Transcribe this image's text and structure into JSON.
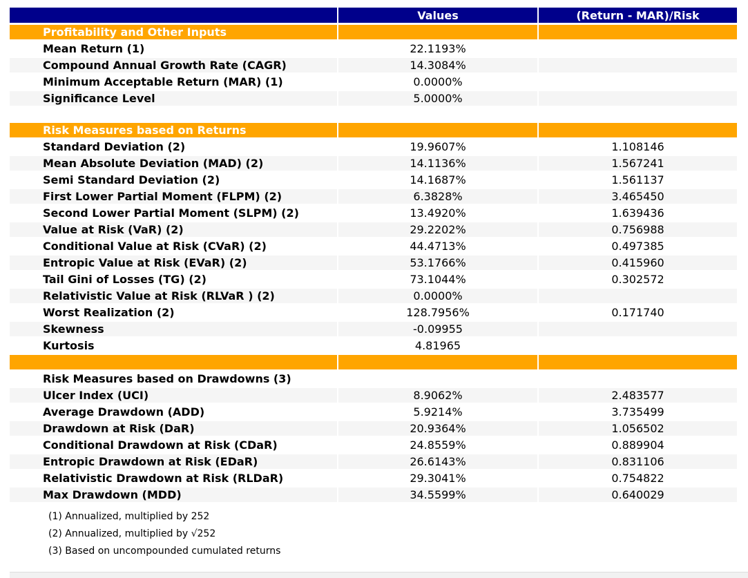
{
  "colors": {
    "header_bg": "#00008B",
    "section_bg": "#FFA500",
    "row_alt_bg": "#F5F5F5",
    "header_text": "#FFFFFF",
    "body_text": "#000000"
  },
  "table": {
    "columns": [
      "",
      "Values",
      "(Return - MAR)/Risk"
    ],
    "sections": [
      {
        "header": "Profitability and Other Inputs",
        "gap_before": false,
        "rows": [
          {
            "label": "Mean Return (1)",
            "value": "22.1193%",
            "ratio": ""
          },
          {
            "label": "Compound Annual Growth Rate (CAGR)",
            "value": "14.3084%",
            "ratio": ""
          },
          {
            "label": "Minimum Acceptable Return (MAR) (1)",
            "value": "0.0000%",
            "ratio": ""
          },
          {
            "label": "Significance Level",
            "value": "5.0000%",
            "ratio": ""
          }
        ]
      },
      {
        "header": "Risk Measures based on Returns",
        "gap_before": true,
        "rows": [
          {
            "label": "Standard Deviation (2)",
            "value": "19.9607%",
            "ratio": "1.108146"
          },
          {
            "label": "Mean Absolute Deviation (MAD) (2)",
            "value": "14.1136%",
            "ratio": "1.567241"
          },
          {
            "label": "Semi Standard Deviation (2)",
            "value": "14.1687%",
            "ratio": "1.561137"
          },
          {
            "label": "First Lower Partial Moment (FLPM) (2)",
            "value": "6.3828%",
            "ratio": "3.465450"
          },
          {
            "label": "Second Lower Partial Moment (SLPM) (2)",
            "value": "13.4920%",
            "ratio": "1.639436"
          },
          {
            "label": "Value at Risk (VaR) (2)",
            "value": "29.2202%",
            "ratio": "0.756988"
          },
          {
            "label": "Conditional Value at Risk (CVaR) (2)",
            "value": "44.4713%",
            "ratio": "0.497385"
          },
          {
            "label": "Entropic Value at Risk (EVaR) (2)",
            "value": "53.1766%",
            "ratio": "0.415960"
          },
          {
            "label": "Tail Gini of Losses (TG) (2)",
            "value": "73.1044%",
            "ratio": "0.302572"
          },
          {
            "label": "Relativistic Value at Risk (RLVaR ) (2)",
            "value": "0.0000%",
            "ratio": ""
          },
          {
            "label": "Worst Realization (2)",
            "value": "128.7956%",
            "ratio": "0.171740"
          },
          {
            "label": "Skewness",
            "value": "-0.09955",
            "ratio": ""
          },
          {
            "label": "Kurtosis",
            "value": "4.81965",
            "ratio": ""
          }
        ]
      },
      {
        "header": "",
        "gap_before": false,
        "rows": [
          {
            "label": "Risk Measures based on Drawdowns (3)",
            "value": "",
            "ratio": ""
          },
          {
            "label": "Ulcer Index (UCI)",
            "value": "8.9062%",
            "ratio": "2.483577"
          },
          {
            "label": "Average Drawdown (ADD)",
            "value": "5.9214%",
            "ratio": "3.735499"
          },
          {
            "label": "Drawdown at Risk (DaR)",
            "value": "20.9364%",
            "ratio": "1.056502"
          },
          {
            "label": "Conditional Drawdown at Risk (CDaR)",
            "value": "24.8559%",
            "ratio": "0.889904"
          },
          {
            "label": "Entropic Drawdown at Risk (EDaR)",
            "value": "26.6143%",
            "ratio": "0.831106"
          },
          {
            "label": "Relativistic Drawdown at Risk (RLDaR)",
            "value": "29.3041%",
            "ratio": "0.754822"
          },
          {
            "label": "Max Drawdown (MDD)",
            "value": "34.5599%",
            "ratio": "0.640029"
          }
        ]
      }
    ]
  },
  "footnotes": [
    "(1) Annualized, multiplied by 252",
    "(2) Annualized, multiplied by √252",
    "(3) Based on uncompounded cumulated returns"
  ]
}
